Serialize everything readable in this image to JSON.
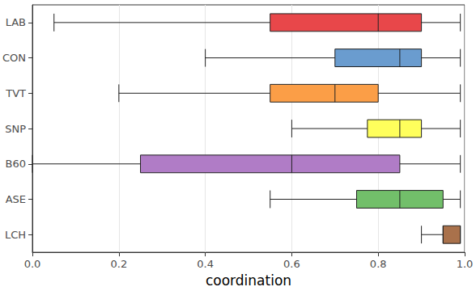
{
  "chart_data": {
    "type": "boxplot",
    "orientation": "horizontal",
    "x_label": "coordination",
    "categories": [
      "LAB",
      "CON",
      "TVT",
      "SNP",
      "B60",
      "ASE",
      "LCH"
    ],
    "values": [
      [
        0.05,
        0.55,
        0.8,
        0.9,
        0.99
      ],
      [
        0.4,
        0.7,
        0.85,
        0.9,
        0.99
      ],
      [
        0.2,
        0.55,
        0.7,
        0.8,
        0.99
      ],
      [
        0.6,
        0.775,
        0.85,
        0.9,
        0.99
      ],
      [
        0.0,
        0.25,
        0.6,
        0.85,
        0.99
      ],
      [
        0.55,
        0.75,
        0.85,
        0.95,
        0.99
      ],
      [
        0.9,
        0.95,
        0.95,
        0.99,
        0.99
      ]
    ],
    "colors": [
      "#e8474a",
      "#6a9ccf",
      "#fb9e47",
      "#ffff5c",
      "#b07cc6",
      "#72bf6a",
      "#a9714b"
    ],
    "xlim": [
      0,
      1
    ],
    "xticks": [
      {
        "value": 0,
        "label": "0.0"
      },
      0.2,
      0.4,
      0.6,
      0.8,
      {
        "value": 1,
        "label": "1.0"
      }
    ],
    "grid": true
  }
}
